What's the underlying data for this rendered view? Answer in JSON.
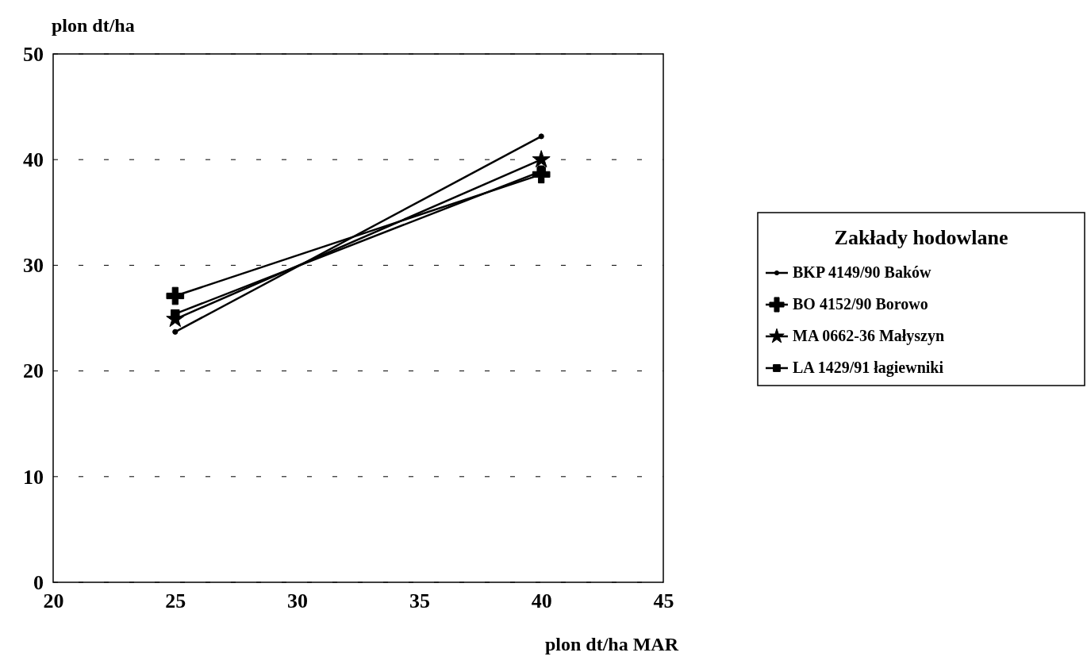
{
  "chart_data": {
    "type": "line",
    "ylabel": "plon dt/ha",
    "xlabel": "plon dt/ha MAR",
    "legend_title": "Zakłady hodowlane",
    "x": [
      25,
      40
    ],
    "xlim": [
      20,
      45
    ],
    "xticks": [
      20,
      25,
      30,
      35,
      40,
      45
    ],
    "ylim": [
      0,
      50
    ],
    "yticks": [
      0,
      10,
      20,
      30,
      40,
      50
    ],
    "grid": "y",
    "legend": "right",
    "series": [
      {
        "name": "BKP 4149/90 Baków",
        "color": "#000000",
        "marker": "circle",
        "values": [
          23.7,
          42.2
        ]
      },
      {
        "name": "BO 4152/90 Borowo",
        "color": "#000000",
        "marker": "cross",
        "values": [
          27.1,
          38.6
        ]
      },
      {
        "name": "MA 0662-36 Małyszyn",
        "color": "#000000",
        "marker": "star",
        "values": [
          24.9,
          40.0
        ]
      },
      {
        "name": "LA 1429/91 łagiewniki",
        "color": "#000000",
        "marker": "square",
        "values": [
          25.4,
          38.9
        ]
      }
    ]
  }
}
